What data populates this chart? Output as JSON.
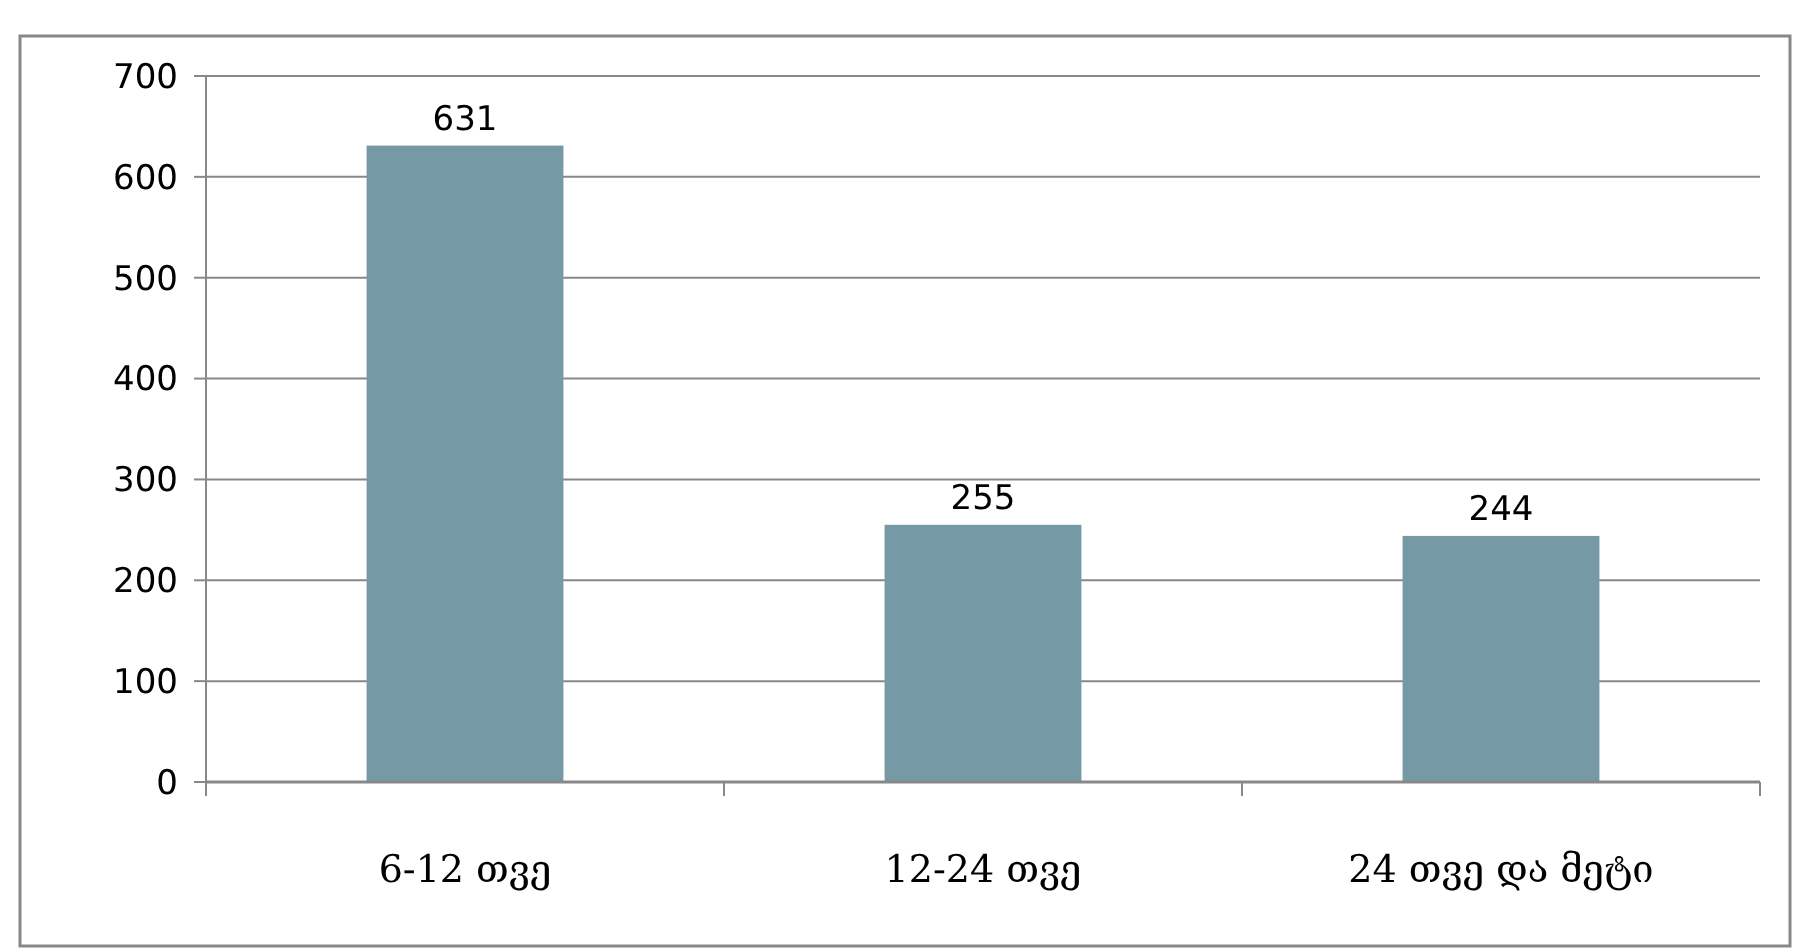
{
  "chart_data": {
    "type": "bar",
    "categories": [
      "6-12 თვე",
      "12-24 თვე",
      "24 თვე და მეტი"
    ],
    "values": [
      631,
      255,
      244
    ],
    "color": "#7599a5",
    "ylim": [
      0,
      700
    ],
    "yticks": [
      0,
      100,
      200,
      300,
      400,
      500,
      600,
      700
    ],
    "grid": "y",
    "data_labels": true
  }
}
